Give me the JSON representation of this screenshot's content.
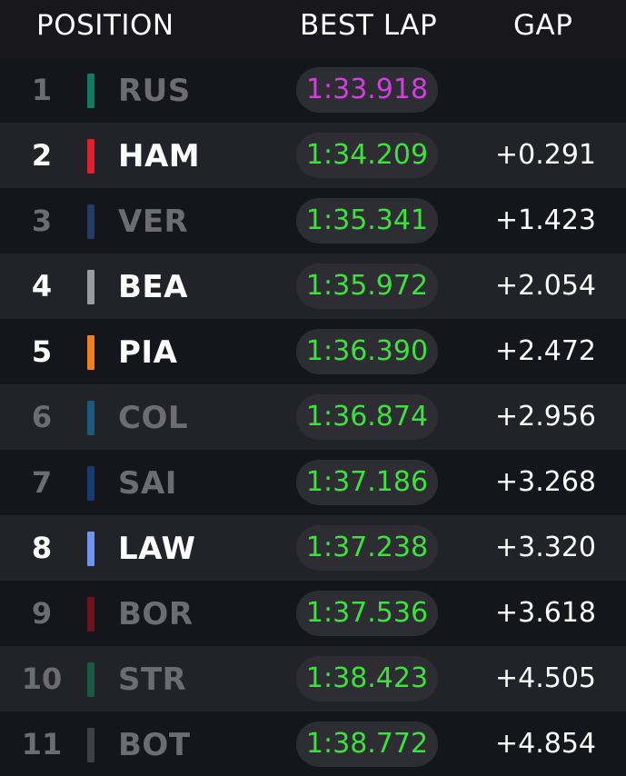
{
  "header": {
    "position_label": "POSITION",
    "best_lap_label": "BEST LAP",
    "gap_label": "GAP"
  },
  "colors": {
    "fastest_lap": "#d23ee0",
    "lap_time": "#3ee03e",
    "faded_text": "#6c6c72",
    "bright_text": "#ffffff"
  },
  "rows": [
    {
      "position": "1",
      "driver": "RUS",
      "best_lap": "1:33.918",
      "gap": "",
      "team_color": "#137a62",
      "style": "faded",
      "fastest": true
    },
    {
      "position": "2",
      "driver": "HAM",
      "best_lap": "1:34.209",
      "gap": "+0.291",
      "team_color": "#e1202e",
      "style": "bright",
      "fastest": false
    },
    {
      "position": "3",
      "driver": "VER",
      "best_lap": "1:35.341",
      "gap": "+1.423",
      "team_color": "#243b66",
      "style": "faded",
      "fastest": false
    },
    {
      "position": "4",
      "driver": "BEA",
      "best_lap": "1:35.972",
      "gap": "+2.054",
      "team_color": "#9a9aa0",
      "style": "bright",
      "fastest": false
    },
    {
      "position": "5",
      "driver": "PIA",
      "best_lap": "1:36.390",
      "gap": "+2.472",
      "team_color": "#f2801e",
      "style": "bright",
      "fastest": false
    },
    {
      "position": "6",
      "driver": "COL",
      "best_lap": "1:36.874",
      "gap": "+2.956",
      "team_color": "#1a5a7e",
      "style": "faded",
      "fastest": false
    },
    {
      "position": "7",
      "driver": "SAI",
      "best_lap": "1:37.186",
      "gap": "+3.268",
      "team_color": "#173a70",
      "style": "faded",
      "fastest": false
    },
    {
      "position": "8",
      "driver": "LAW",
      "best_lap": "1:37.238",
      "gap": "+3.320",
      "team_color": "#6e94f0",
      "style": "bright",
      "fastest": false
    },
    {
      "position": "9",
      "driver": "BOR",
      "best_lap": "1:37.536",
      "gap": "+3.618",
      "team_color": "#6e121c",
      "style": "faded",
      "fastest": false
    },
    {
      "position": "10",
      "driver": "STR",
      "best_lap": "1:38.423",
      "gap": "+4.505",
      "team_color": "#1a5a40",
      "style": "faded",
      "fastest": false
    },
    {
      "position": "11",
      "driver": "BOT",
      "best_lap": "1:38.772",
      "gap": "+4.854",
      "team_color": "#404044",
      "style": "faded",
      "fastest": false
    }
  ]
}
